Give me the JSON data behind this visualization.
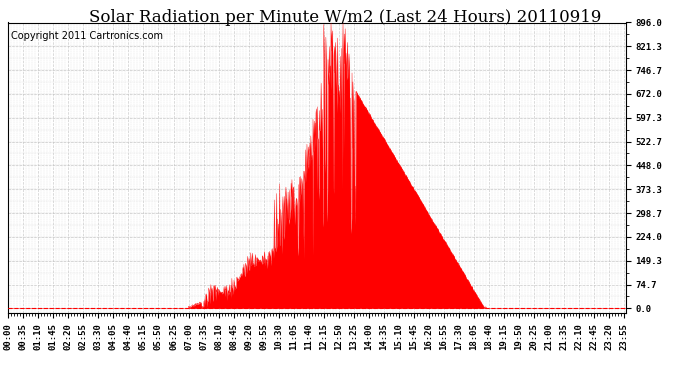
{
  "title": "Solar Radiation per Minute W/m2 (Last 24 Hours) 20110919",
  "copyright": "Copyright 2011 Cartronics.com",
  "fill_color": "#FF0000",
  "line_color": "#FF0000",
  "bg_color": "#FFFFFF",
  "plot_bg_color": "#FFFFFF",
  "grid_color": "#C0C0C0",
  "dashed_line_color": "#FF0000",
  "y_ticks": [
    0.0,
    74.7,
    149.3,
    224.0,
    298.7,
    373.3,
    448.0,
    522.7,
    597.3,
    672.0,
    746.7,
    821.3,
    896.0
  ],
  "ylim": [
    0,
    896.0
  ],
  "num_minutes": 1440,
  "title_fontsize": 12,
  "copyright_fontsize": 7,
  "tick_fontsize": 6.5,
  "x_tick_labels": [
    "00:00",
    "00:35",
    "01:10",
    "01:45",
    "02:20",
    "02:55",
    "03:30",
    "04:05",
    "04:40",
    "05:15",
    "05:50",
    "06:25",
    "07:00",
    "07:35",
    "08:10",
    "08:45",
    "09:20",
    "09:55",
    "10:30",
    "11:05",
    "11:40",
    "12:15",
    "12:50",
    "13:25",
    "14:00",
    "14:35",
    "15:10",
    "15:45",
    "16:20",
    "16:55",
    "17:30",
    "18:05",
    "18:40",
    "19:15",
    "19:50",
    "20:25",
    "21:00",
    "21:35",
    "22:10",
    "22:45",
    "23:20",
    "23:55"
  ]
}
